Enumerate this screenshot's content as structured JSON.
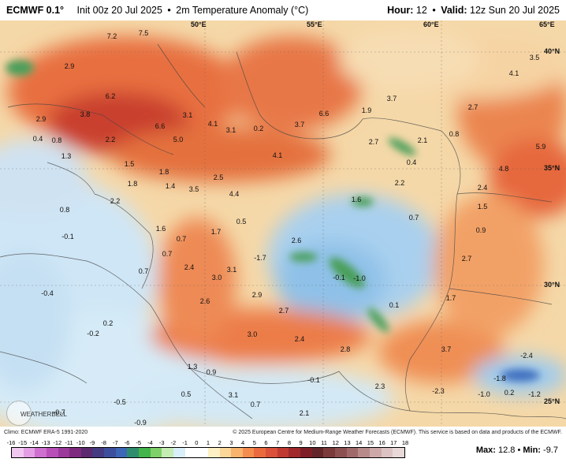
{
  "header": {
    "brand": "ECMWF 0.1°",
    "init": "Init 00z 20 Jul 2025",
    "variable": "2m Temperature Anomaly (°C)",
    "hour_label": "Hour:",
    "hour_value": "12",
    "valid_label": "Valid:",
    "valid_value": "12z Sun 20 Jul 2025"
  },
  "map": {
    "coords": [
      {
        "text": "50°E"
      },
      {
        "text": "55°E"
      },
      {
        "text": "60°E"
      },
      {
        "text": "65°E"
      },
      {
        "text": "40°N"
      },
      {
        "text": "35°N"
      },
      {
        "text": "30°N"
      },
      {
        "text": "25°N"
      }
    ],
    "values": [
      {
        "text": "7.2"
      },
      {
        "text": "7.5"
      },
      {
        "text": "2.9"
      },
      {
        "text": "6.2"
      },
      {
        "text": "3.8"
      },
      {
        "text": "2.9"
      },
      {
        "text": "6.6"
      },
      {
        "text": "3.1"
      },
      {
        "text": "4.1"
      },
      {
        "text": "3.1"
      },
      {
        "text": "0.2"
      },
      {
        "text": "3.7"
      },
      {
        "text": "6.6"
      },
      {
        "text": "3.7"
      },
      {
        "text": "1.9"
      },
      {
        "text": "2.7"
      },
      {
        "text": "4.1"
      },
      {
        "text": "3.5"
      },
      {
        "text": "0.4"
      },
      {
        "text": "0.8"
      },
      {
        "text": "2.2"
      },
      {
        "text": "5.0"
      },
      {
        "text": "1.3"
      },
      {
        "text": "4.1"
      },
      {
        "text": "2.7"
      },
      {
        "text": "2.1"
      },
      {
        "text": "0.8"
      },
      {
        "text": "1.5"
      },
      {
        "text": "1.8"
      },
      {
        "text": "0.4"
      },
      {
        "text": "5.9"
      },
      {
        "text": "4.8"
      },
      {
        "text": "1.8"
      },
      {
        "text": "1.4"
      },
      {
        "text": "3.5"
      },
      {
        "text": "2.5"
      },
      {
        "text": "4.4"
      },
      {
        "text": "2.2"
      },
      {
        "text": "2.4"
      },
      {
        "text": "0.8"
      },
      {
        "text": "2.2"
      },
      {
        "text": "1.6"
      },
      {
        "text": "1.5"
      },
      {
        "text": "0.7"
      },
      {
        "text": "1.6"
      },
      {
        "text": "0.5"
      },
      {
        "text": "0.7"
      },
      {
        "text": "1.7"
      },
      {
        "text": "0.9"
      },
      {
        "text": "-0.1"
      },
      {
        "text": "2.6"
      },
      {
        "text": "0.7"
      },
      {
        "text": "-1.7"
      },
      {
        "text": "2.7"
      },
      {
        "text": "0.7"
      },
      {
        "text": "2.4"
      },
      {
        "text": "3.1"
      },
      {
        "text": "3.0"
      },
      {
        "text": "-0.1"
      },
      {
        "text": "-1.0"
      },
      {
        "text": "-0.4"
      },
      {
        "text": "2.6"
      },
      {
        "text": "2.9"
      },
      {
        "text": "1.7"
      },
      {
        "text": "0.1"
      },
      {
        "text": "0.2"
      },
      {
        "text": "2.7"
      },
      {
        "text": "-0.2"
      },
      {
        "text": "3.0"
      },
      {
        "text": "2.4"
      },
      {
        "text": "2.8"
      },
      {
        "text": "3.7"
      },
      {
        "text": "1.3"
      },
      {
        "text": "0.9"
      },
      {
        "text": "-0.1"
      },
      {
        "text": "2.3"
      },
      {
        "text": "-2.4"
      },
      {
        "text": "-1.8"
      },
      {
        "text": "0.5"
      },
      {
        "text": "3.1"
      },
      {
        "text": "-2.3"
      },
      {
        "text": "-1.0"
      },
      {
        "text": "0.2"
      },
      {
        "text": "-1.2"
      },
      {
        "text": "-0.5"
      },
      {
        "text": "0.7"
      },
      {
        "text": "-0.7"
      },
      {
        "text": "-0.9"
      },
      {
        "text": "2.1"
      }
    ]
  },
  "watermark": "WEATHERBELL",
  "credits": {
    "left": "Climo: ECMWF ERA-5 1991-2020",
    "right": "© 2025 European Centre for Medium-Range Weather Forecasts (ECMWF). This service is based on data and products of the ECMWF."
  },
  "legend": {
    "ticks": [
      "-16",
      "-15",
      "-14",
      "-13",
      "-12",
      "-11",
      "-10",
      "-9",
      "-8",
      "-7",
      "-6",
      "-5",
      "-4",
      "-3",
      "-2",
      "-1",
      "0",
      "1",
      "2",
      "3",
      "4",
      "5",
      "6",
      "7",
      "8",
      "9",
      "10",
      "11",
      "12",
      "13",
      "14",
      "15",
      "16",
      "17",
      "18"
    ],
    "colors": [
      "#f0c8f0",
      "#e49ee4",
      "#cf6fcf",
      "#b84fb8",
      "#9b3a9b",
      "#7f2a7f",
      "#5c2a6e",
      "#443b80",
      "#3d4f9c",
      "#3e66b6",
      "#2f8d6e",
      "#42b44a",
      "#7fd06a",
      "#c5ecb3",
      "#d8eef8",
      "#ffffff",
      "#ffffff",
      "#fdf0c4",
      "#fbd79a",
      "#f8b36c",
      "#f48c4f",
      "#ea6a3e",
      "#d9513a",
      "#c03a32",
      "#a02a2c",
      "#7e1f28",
      "#63252a",
      "#7a3a3a",
      "#8c5050",
      "#a06a6a",
      "#b88b8b",
      "#cda8a8",
      "#dcc2c2",
      "#e8d8d8"
    ],
    "max_label": "Max:",
    "max_value": "12.8",
    "min_label": "Min:",
    "min_value": "-9.7"
  }
}
